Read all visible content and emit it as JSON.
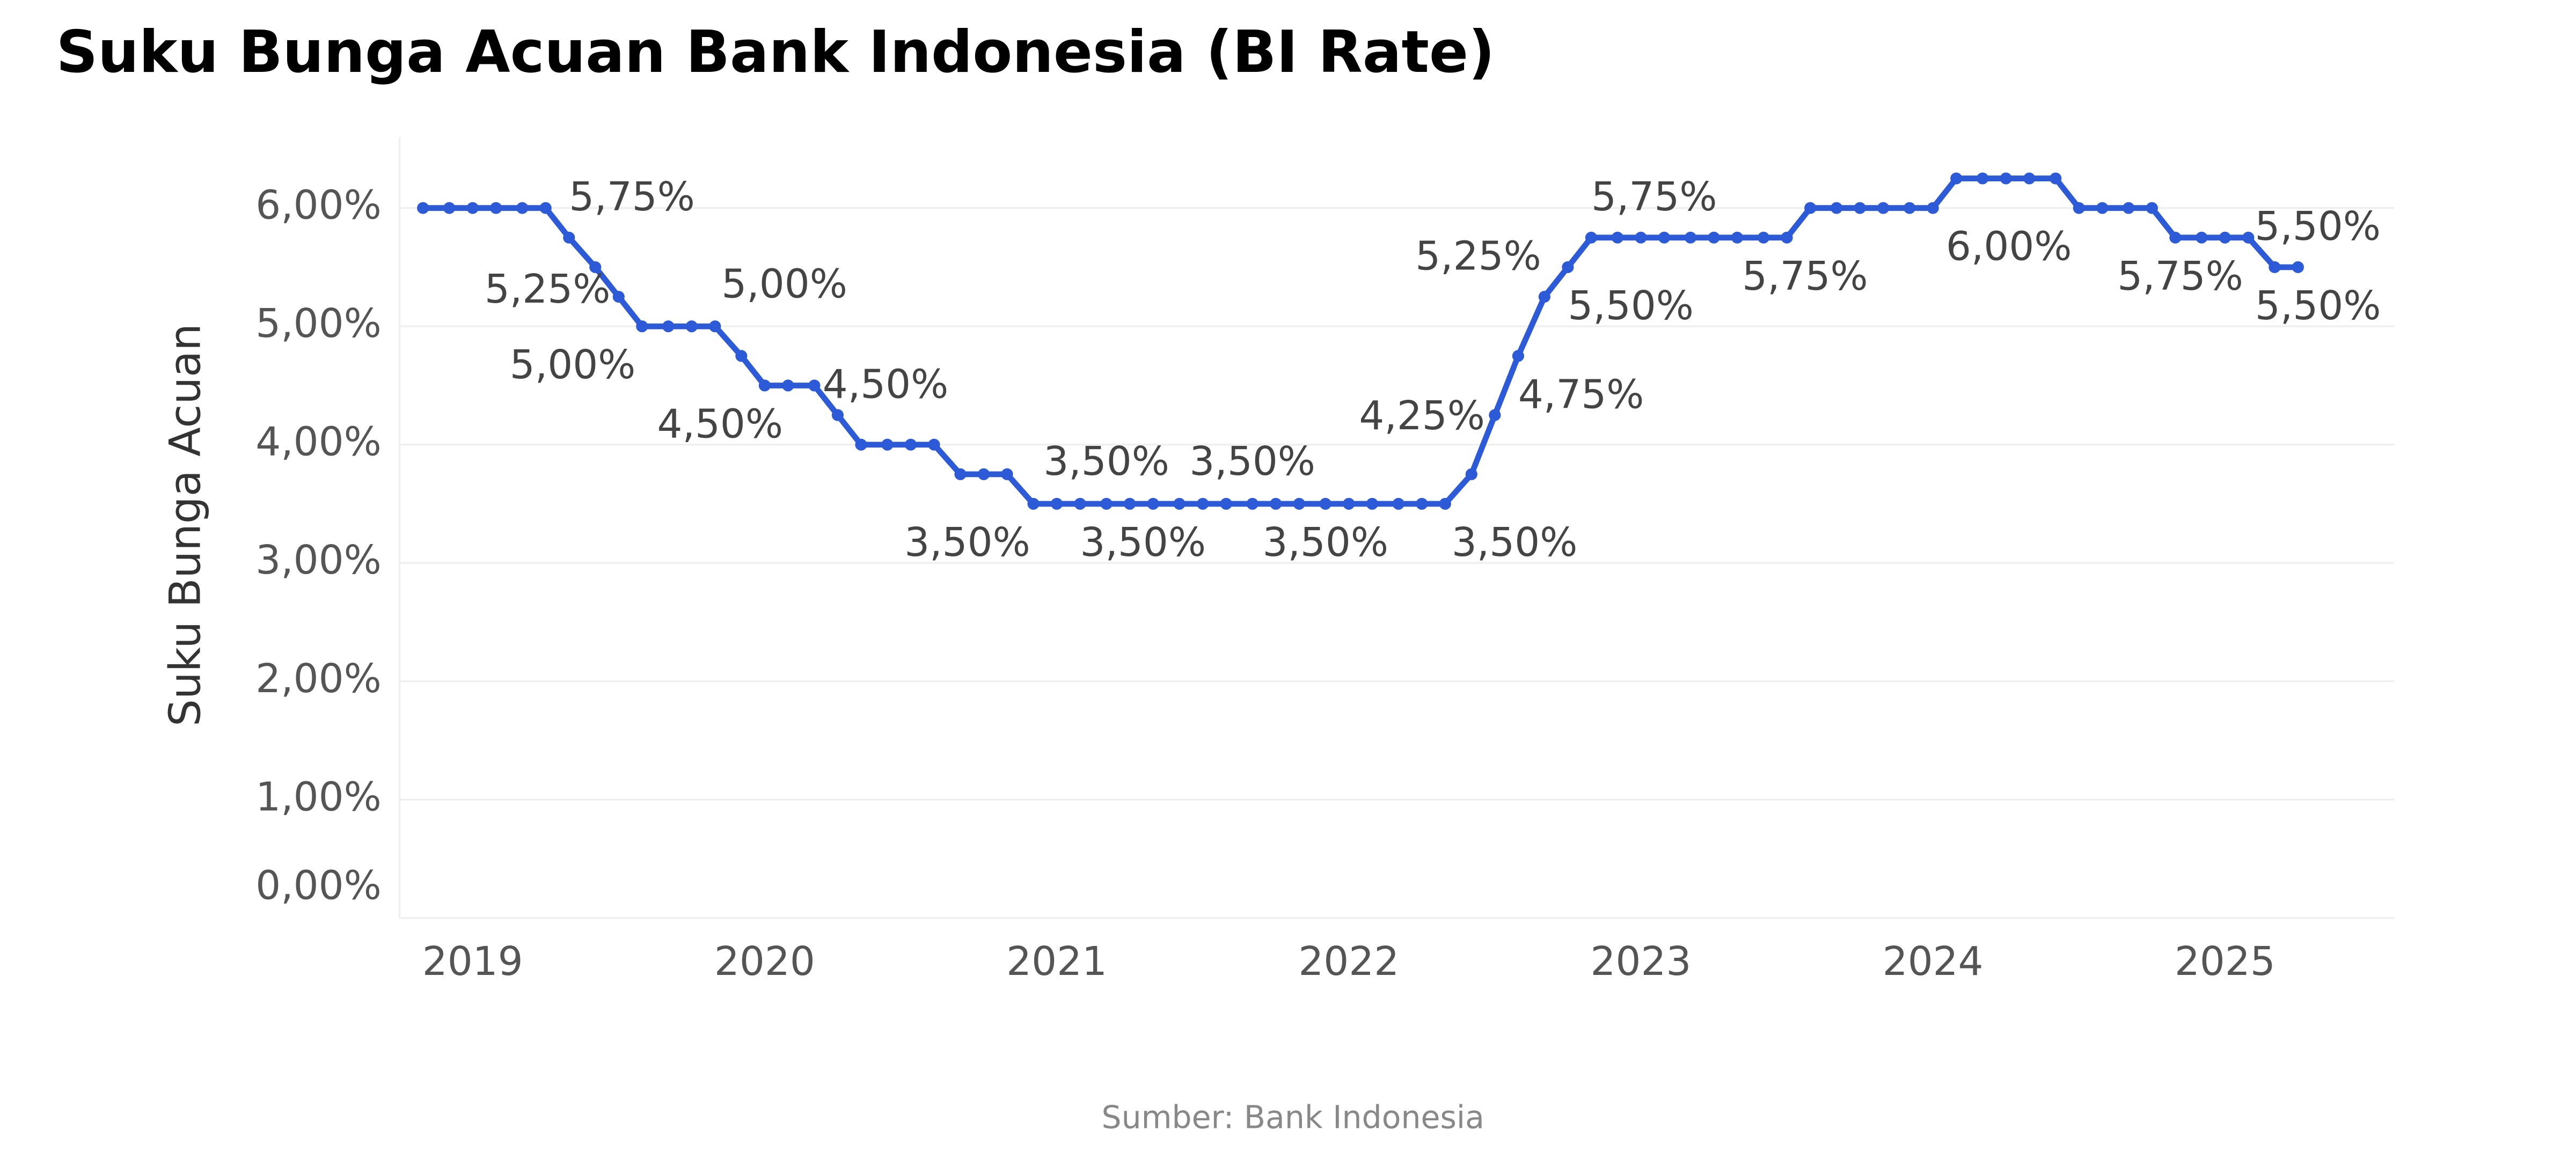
{
  "chart_data": {
    "type": "line",
    "title": "Suku Bunga Acuan Bank Indonesia (BI Rate)",
    "ylabel": "Suku Bunga Acuan",
    "source": "Sumber: Bank Indonesia",
    "x": [
      2018.83,
      2018.92,
      2019.0,
      2019.08,
      2019.17,
      2019.25,
      2019.33,
      2019.42,
      2019.5,
      2019.58,
      2019.67,
      2019.75,
      2019.83,
      2019.92,
      2020.0,
      2020.08,
      2020.17,
      2020.25,
      2020.33,
      2020.42,
      2020.5,
      2020.58,
      2020.67,
      2020.75,
      2020.83,
      2020.92,
      2021.0,
      2021.08,
      2021.17,
      2021.25,
      2021.33,
      2021.42,
      2021.5,
      2021.58,
      2021.67,
      2021.75,
      2021.83,
      2021.92,
      2022.0,
      2022.08,
      2022.17,
      2022.25,
      2022.33,
      2022.42,
      2022.5,
      2022.58,
      2022.67,
      2022.75,
      2022.83,
      2022.92,
      2023.0,
      2023.08,
      2023.17,
      2023.25,
      2023.33,
      2023.42,
      2023.5,
      2023.58,
      2023.67,
      2023.75,
      2023.83,
      2023.92,
      2024.0,
      2024.08,
      2024.17,
      2024.25,
      2024.33,
      2024.42,
      2024.5,
      2024.58,
      2024.67,
      2024.75,
      2024.83,
      2024.92,
      2025.0,
      2025.08,
      2025.17,
      2025.25
    ],
    "series": [
      {
        "name": "BI Rate",
        "color": "#2d5bd7",
        "values": [
          6,
          6,
          6,
          6,
          6,
          6,
          5.75,
          5.5,
          5.25,
          5,
          5,
          5,
          5,
          4.75,
          4.5,
          4.5,
          4.5,
          4.25,
          4,
          4,
          4,
          4,
          3.75,
          3.75,
          3.75,
          3.5,
          3.5,
          3.5,
          3.5,
          3.5,
          3.5,
          3.5,
          3.5,
          3.5,
          3.5,
          3.5,
          3.5,
          3.5,
          3.5,
          3.5,
          3.5,
          3.5,
          3.5,
          3.75,
          4.25,
          4.75,
          5.25,
          5.5,
          5.75,
          5.75,
          5.75,
          5.75,
          5.75,
          5.75,
          5.75,
          5.75,
          5.75,
          6,
          6,
          6,
          6,
          6,
          6,
          6.25,
          6.25,
          6.25,
          6.25,
          6.25,
          6,
          6,
          6,
          6,
          5.75,
          5.75,
          5.75,
          5.75,
          5.5,
          5.5
        ],
        "value_labels": [
          null,
          null,
          null,
          null,
          null,
          null,
          "5,75%",
          null,
          "5,25%",
          "5,00%",
          null,
          null,
          "5,00%",
          null,
          "4,50%",
          null,
          "4,50%",
          null,
          null,
          null,
          null,
          null,
          null,
          null,
          null,
          "3,50%",
          null,
          null,
          "3,50%",
          "3,50%",
          null,
          null,
          null,
          null,
          "3,50%",
          null,
          null,
          "3,50%",
          null,
          null,
          null,
          null,
          "3,50%",
          null,
          "4,25%",
          "4,75%",
          "5,25%",
          "5,50%",
          "5,75%",
          null,
          null,
          null,
          null,
          null,
          null,
          null,
          "5,75%",
          null,
          null,
          null,
          null,
          null,
          "6,00%",
          null,
          null,
          null,
          null,
          null,
          null,
          null,
          null,
          null,
          "5,75%",
          null,
          null,
          null,
          "5,50%",
          "5,50%"
        ]
      }
    ],
    "xlim": [
      2018.75,
      2025.58
    ],
    "xticks": [
      2019,
      2020,
      2021,
      2022,
      2023,
      2024,
      2025
    ],
    "ylim": [
      0,
      6.6
    ],
    "yticks": [
      {
        "value": 0,
        "label": "0,00%"
      },
      {
        "value": 1,
        "label": "1,00%"
      },
      {
        "value": 2,
        "label": "2,00%"
      },
      {
        "value": 3,
        "label": "3,00%"
      },
      {
        "value": 4,
        "label": "4,00%"
      },
      {
        "value": 5,
        "label": "5,00%"
      },
      {
        "value": 6,
        "label": "6,00%"
      }
    ],
    "grid": true
  }
}
